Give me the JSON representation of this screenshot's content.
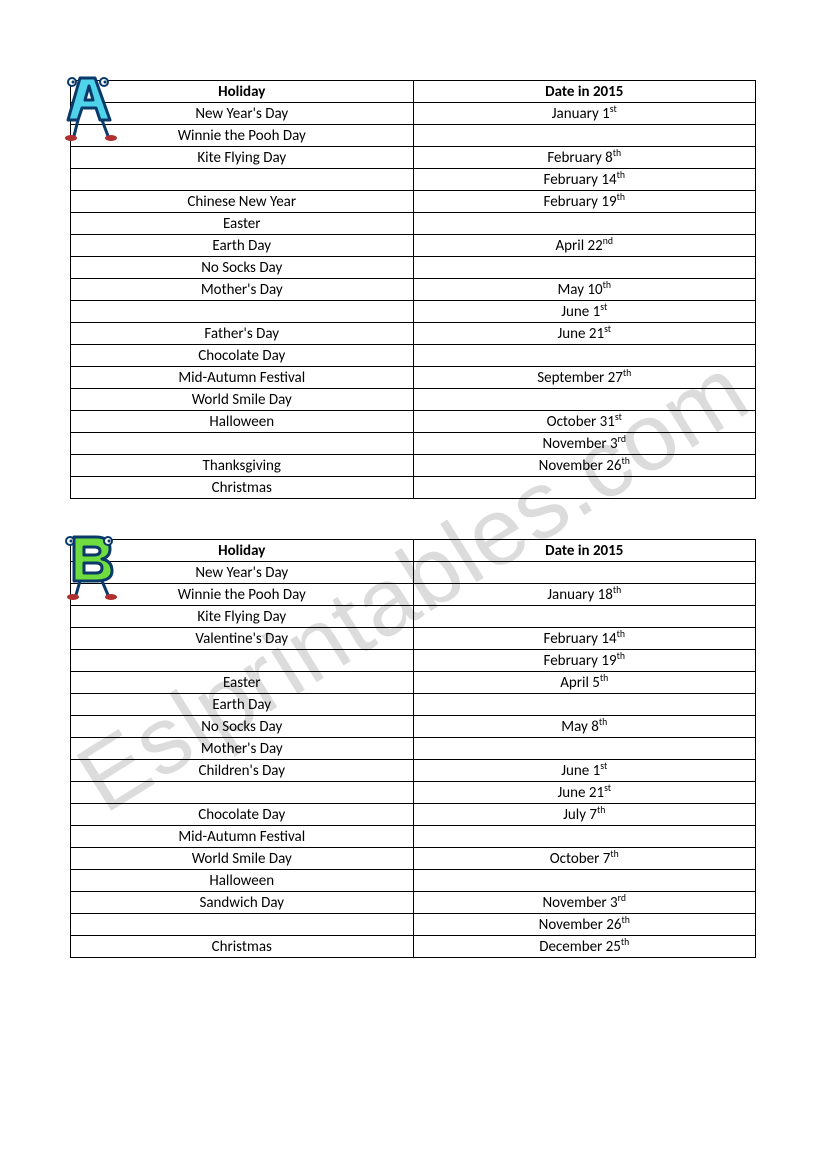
{
  "watermark": "Eslprintables.com",
  "tables": [
    {
      "letter": "A",
      "icon_colors": {
        "fill": "#4fd3ea",
        "stroke": "#0a3a6a",
        "eye": "#0a3a6a",
        "leg": "#0a3a6a",
        "foot": "#b03030"
      },
      "columns": [
        "Holiday",
        "Date in 2015"
      ],
      "rows": [
        {
          "holiday": "New Year's Day",
          "date": "January 1",
          "ord": "st"
        },
        {
          "holiday": "Winnie the Pooh Day",
          "date": "",
          "ord": ""
        },
        {
          "holiday": "Kite Flying Day",
          "date": "February 8",
          "ord": "th"
        },
        {
          "holiday": "",
          "date": "February 14",
          "ord": "th"
        },
        {
          "holiday": "Chinese New Year",
          "date": "February 19",
          "ord": "th"
        },
        {
          "holiday": "Easter",
          "date": "",
          "ord": ""
        },
        {
          "holiday": "Earth Day",
          "date": "April 22",
          "ord": "nd"
        },
        {
          "holiday": "No Socks Day",
          "date": "",
          "ord": ""
        },
        {
          "holiday": "Mother's Day",
          "date": "May 10",
          "ord": "th"
        },
        {
          "holiday": "",
          "date": "June 1",
          "ord": "st"
        },
        {
          "holiday": "Father's Day",
          "date": "June 21",
          "ord": "st"
        },
        {
          "holiday": "Chocolate Day",
          "date": "",
          "ord": ""
        },
        {
          "holiday": "Mid-Autumn Festival",
          "date": "September 27",
          "ord": "th"
        },
        {
          "holiday": "World Smile Day",
          "date": "",
          "ord": ""
        },
        {
          "holiday": "Halloween",
          "date": "October 31",
          "ord": "st"
        },
        {
          "holiday": "",
          "date": "November 3",
          "ord": "rd"
        },
        {
          "holiday": "Thanksgiving",
          "date": "November 26",
          "ord": "th"
        },
        {
          "holiday": "Christmas",
          "date": "",
          "ord": ""
        }
      ]
    },
    {
      "letter": "B",
      "icon_colors": {
        "fill": "#6fdc3f",
        "stroke": "#0a3a6a",
        "eye": "#0a3a6a",
        "leg": "#0a3a6a",
        "foot": "#b03030"
      },
      "columns": [
        "Holiday",
        "Date in 2015"
      ],
      "rows": [
        {
          "holiday": "New Year's Day",
          "date": "",
          "ord": ""
        },
        {
          "holiday": "Winnie the Pooh Day",
          "date": "January 18",
          "ord": "th"
        },
        {
          "holiday": "Kite Flying Day",
          "date": "",
          "ord": ""
        },
        {
          "holiday": "Valentine's Day",
          "date": "February 14",
          "ord": "th"
        },
        {
          "holiday": "",
          "date": "February 19",
          "ord": "th"
        },
        {
          "holiday": "Easter",
          "date": "April 5",
          "ord": "th"
        },
        {
          "holiday": "Earth Day",
          "date": "",
          "ord": ""
        },
        {
          "holiday": "No Socks Day",
          "date": "May 8",
          "ord": "th"
        },
        {
          "holiday": "Mother's Day",
          "date": "",
          "ord": ""
        },
        {
          "holiday": "Children's Day",
          "date": "June 1",
          "ord": "st"
        },
        {
          "holiday": "",
          "date": "June 21",
          "ord": "st"
        },
        {
          "holiday": "Chocolate Day",
          "date": "July 7",
          "ord": "th"
        },
        {
          "holiday": "Mid-Autumn Festival",
          "date": "",
          "ord": ""
        },
        {
          "holiday": "World Smile Day",
          "date": "October 7",
          "ord": "th"
        },
        {
          "holiday": "Halloween",
          "date": "",
          "ord": ""
        },
        {
          "holiday": "Sandwich Day",
          "date": "November 3",
          "ord": "rd"
        },
        {
          "holiday": "",
          "date": "November 26",
          "ord": "th"
        },
        {
          "holiday": "Christmas",
          "date": "December 25",
          "ord": "th"
        }
      ]
    }
  ]
}
